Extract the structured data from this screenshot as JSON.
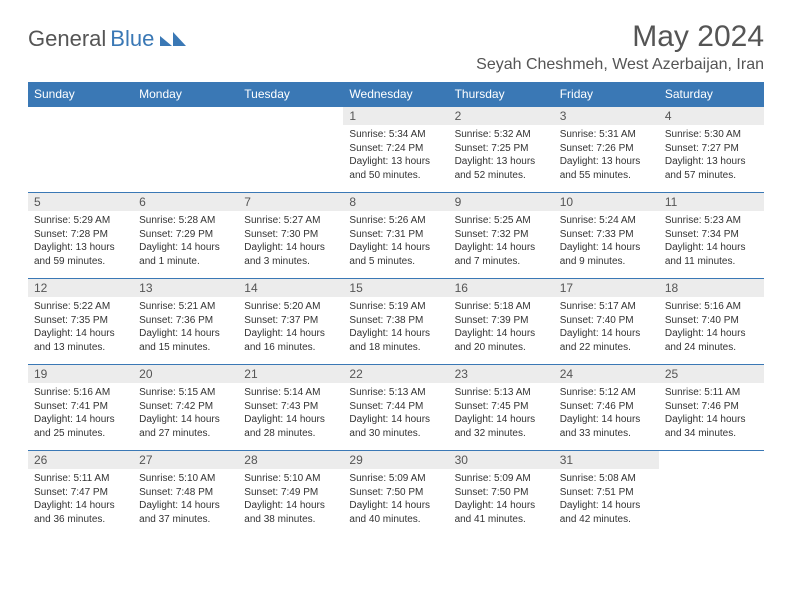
{
  "logo": {
    "part1": "General",
    "part2": "Blue"
  },
  "title": "May 2024",
  "location": "Seyah Cheshmeh, West Azerbaijan, Iran",
  "header_bg": "#3a78b5",
  "daynum_bg": "#ececec",
  "border_color": "#3a78b5",
  "weekdays": [
    "Sunday",
    "Monday",
    "Tuesday",
    "Wednesday",
    "Thursday",
    "Friday",
    "Saturday"
  ],
  "weeks": [
    [
      null,
      null,
      null,
      {
        "n": "1",
        "sr": "Sunrise: 5:34 AM",
        "ss": "Sunset: 7:24 PM",
        "d1": "Daylight: 13 hours",
        "d2": "and 50 minutes."
      },
      {
        "n": "2",
        "sr": "Sunrise: 5:32 AM",
        "ss": "Sunset: 7:25 PM",
        "d1": "Daylight: 13 hours",
        "d2": "and 52 minutes."
      },
      {
        "n": "3",
        "sr": "Sunrise: 5:31 AM",
        "ss": "Sunset: 7:26 PM",
        "d1": "Daylight: 13 hours",
        "d2": "and 55 minutes."
      },
      {
        "n": "4",
        "sr": "Sunrise: 5:30 AM",
        "ss": "Sunset: 7:27 PM",
        "d1": "Daylight: 13 hours",
        "d2": "and 57 minutes."
      }
    ],
    [
      {
        "n": "5",
        "sr": "Sunrise: 5:29 AM",
        "ss": "Sunset: 7:28 PM",
        "d1": "Daylight: 13 hours",
        "d2": "and 59 minutes."
      },
      {
        "n": "6",
        "sr": "Sunrise: 5:28 AM",
        "ss": "Sunset: 7:29 PM",
        "d1": "Daylight: 14 hours",
        "d2": "and 1 minute."
      },
      {
        "n": "7",
        "sr": "Sunrise: 5:27 AM",
        "ss": "Sunset: 7:30 PM",
        "d1": "Daylight: 14 hours",
        "d2": "and 3 minutes."
      },
      {
        "n": "8",
        "sr": "Sunrise: 5:26 AM",
        "ss": "Sunset: 7:31 PM",
        "d1": "Daylight: 14 hours",
        "d2": "and 5 minutes."
      },
      {
        "n": "9",
        "sr": "Sunrise: 5:25 AM",
        "ss": "Sunset: 7:32 PM",
        "d1": "Daylight: 14 hours",
        "d2": "and 7 minutes."
      },
      {
        "n": "10",
        "sr": "Sunrise: 5:24 AM",
        "ss": "Sunset: 7:33 PM",
        "d1": "Daylight: 14 hours",
        "d2": "and 9 minutes."
      },
      {
        "n": "11",
        "sr": "Sunrise: 5:23 AM",
        "ss": "Sunset: 7:34 PM",
        "d1": "Daylight: 14 hours",
        "d2": "and 11 minutes."
      }
    ],
    [
      {
        "n": "12",
        "sr": "Sunrise: 5:22 AM",
        "ss": "Sunset: 7:35 PM",
        "d1": "Daylight: 14 hours",
        "d2": "and 13 minutes."
      },
      {
        "n": "13",
        "sr": "Sunrise: 5:21 AM",
        "ss": "Sunset: 7:36 PM",
        "d1": "Daylight: 14 hours",
        "d2": "and 15 minutes."
      },
      {
        "n": "14",
        "sr": "Sunrise: 5:20 AM",
        "ss": "Sunset: 7:37 PM",
        "d1": "Daylight: 14 hours",
        "d2": "and 16 minutes."
      },
      {
        "n": "15",
        "sr": "Sunrise: 5:19 AM",
        "ss": "Sunset: 7:38 PM",
        "d1": "Daylight: 14 hours",
        "d2": "and 18 minutes."
      },
      {
        "n": "16",
        "sr": "Sunrise: 5:18 AM",
        "ss": "Sunset: 7:39 PM",
        "d1": "Daylight: 14 hours",
        "d2": "and 20 minutes."
      },
      {
        "n": "17",
        "sr": "Sunrise: 5:17 AM",
        "ss": "Sunset: 7:40 PM",
        "d1": "Daylight: 14 hours",
        "d2": "and 22 minutes."
      },
      {
        "n": "18",
        "sr": "Sunrise: 5:16 AM",
        "ss": "Sunset: 7:40 PM",
        "d1": "Daylight: 14 hours",
        "d2": "and 24 minutes."
      }
    ],
    [
      {
        "n": "19",
        "sr": "Sunrise: 5:16 AM",
        "ss": "Sunset: 7:41 PM",
        "d1": "Daylight: 14 hours",
        "d2": "and 25 minutes."
      },
      {
        "n": "20",
        "sr": "Sunrise: 5:15 AM",
        "ss": "Sunset: 7:42 PM",
        "d1": "Daylight: 14 hours",
        "d2": "and 27 minutes."
      },
      {
        "n": "21",
        "sr": "Sunrise: 5:14 AM",
        "ss": "Sunset: 7:43 PM",
        "d1": "Daylight: 14 hours",
        "d2": "and 28 minutes."
      },
      {
        "n": "22",
        "sr": "Sunrise: 5:13 AM",
        "ss": "Sunset: 7:44 PM",
        "d1": "Daylight: 14 hours",
        "d2": "and 30 minutes."
      },
      {
        "n": "23",
        "sr": "Sunrise: 5:13 AM",
        "ss": "Sunset: 7:45 PM",
        "d1": "Daylight: 14 hours",
        "d2": "and 32 minutes."
      },
      {
        "n": "24",
        "sr": "Sunrise: 5:12 AM",
        "ss": "Sunset: 7:46 PM",
        "d1": "Daylight: 14 hours",
        "d2": "and 33 minutes."
      },
      {
        "n": "25",
        "sr": "Sunrise: 5:11 AM",
        "ss": "Sunset: 7:46 PM",
        "d1": "Daylight: 14 hours",
        "d2": "and 34 minutes."
      }
    ],
    [
      {
        "n": "26",
        "sr": "Sunrise: 5:11 AM",
        "ss": "Sunset: 7:47 PM",
        "d1": "Daylight: 14 hours",
        "d2": "and 36 minutes."
      },
      {
        "n": "27",
        "sr": "Sunrise: 5:10 AM",
        "ss": "Sunset: 7:48 PM",
        "d1": "Daylight: 14 hours",
        "d2": "and 37 minutes."
      },
      {
        "n": "28",
        "sr": "Sunrise: 5:10 AM",
        "ss": "Sunset: 7:49 PM",
        "d1": "Daylight: 14 hours",
        "d2": "and 38 minutes."
      },
      {
        "n": "29",
        "sr": "Sunrise: 5:09 AM",
        "ss": "Sunset: 7:50 PM",
        "d1": "Daylight: 14 hours",
        "d2": "and 40 minutes."
      },
      {
        "n": "30",
        "sr": "Sunrise: 5:09 AM",
        "ss": "Sunset: 7:50 PM",
        "d1": "Daylight: 14 hours",
        "d2": "and 41 minutes."
      },
      {
        "n": "31",
        "sr": "Sunrise: 5:08 AM",
        "ss": "Sunset: 7:51 PM",
        "d1": "Daylight: 14 hours",
        "d2": "and 42 minutes."
      },
      null
    ]
  ]
}
